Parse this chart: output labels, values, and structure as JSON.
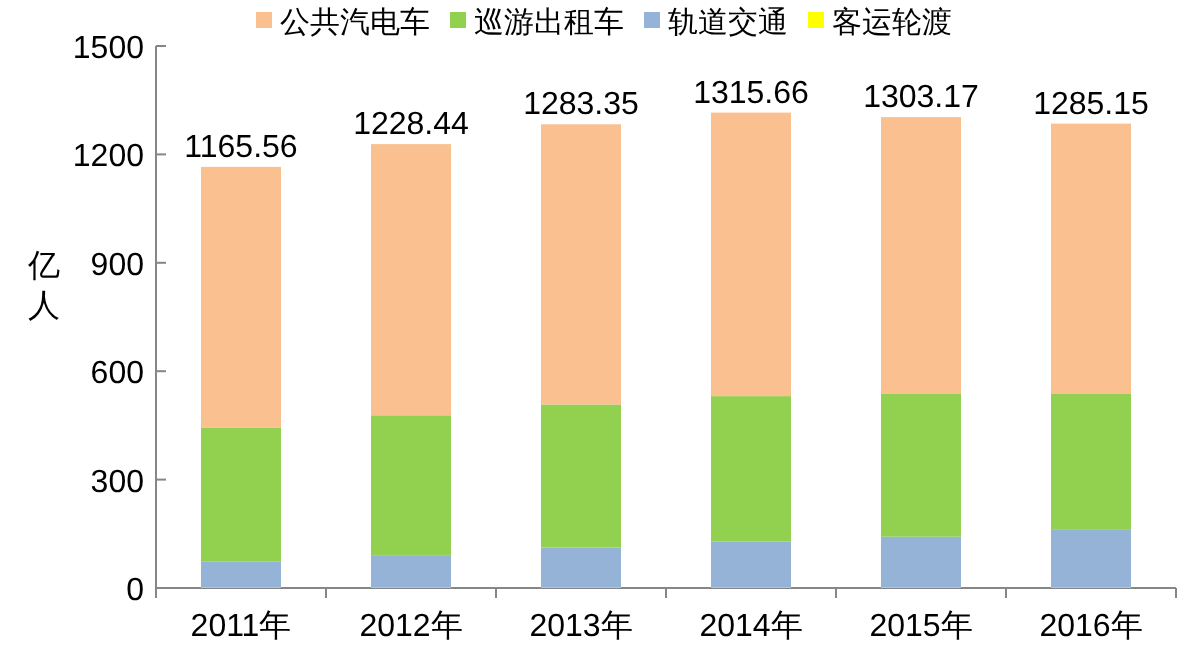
{
  "chart_data": {
    "type": "bar",
    "stacked": true,
    "ylabel": "亿人",
    "categories": [
      "2011年",
      "2012年",
      "2013年",
      "2014年",
      "2015年",
      "2016年"
    ],
    "series": [
      {
        "name": "客运轮渡",
        "color": "#ffff00",
        "values": [
          2,
          2,
          2,
          2,
          2,
          2
        ]
      },
      {
        "name": "轨道交通",
        "color": "#95b3d7",
        "values": [
          72,
          87,
          110,
          127,
          140,
          159
        ]
      },
      {
        "name": "巡游出租车",
        "color": "#92d050",
        "values": [
          369,
          389,
          396,
          402,
          395,
          376
        ]
      },
      {
        "name": "公共汽电车",
        "color": "#fac090",
        "values": [
          722.56,
          750.44,
          775.35,
          784.66,
          766.17,
          748.15
        ]
      }
    ],
    "totals": [
      "1165.56",
      "1228.44",
      "1283.35",
      "1315.66",
      "1303.17",
      "1285.15"
    ],
    "ylim": [
      0,
      1500
    ],
    "yticks": [
      0,
      300,
      600,
      900,
      1200,
      1500
    ],
    "grid": false,
    "legend": "top"
  }
}
